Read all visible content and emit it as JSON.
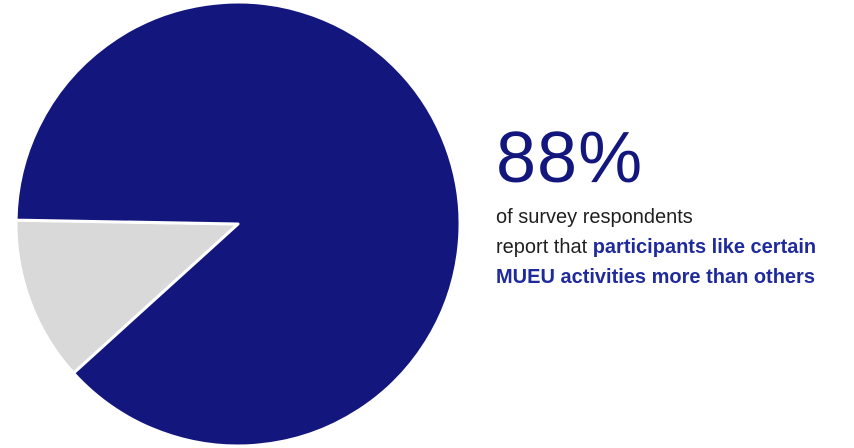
{
  "colors": {
    "primary": "#13177d",
    "secondary": "#d9d9d9",
    "highlight_text": "#1f2a9c",
    "body_text": "#1f1f1f"
  },
  "callout": {
    "percent": "88%",
    "caption_plain_1": "of survey respondents",
    "caption_plain_2": "report that ",
    "caption_bold": "participants like certain MUEU activities more than others"
  },
  "chart_data": {
    "type": "pie",
    "slices": [
      {
        "value": 88,
        "color": "#13177d"
      },
      {
        "value": 12,
        "color": "#d9d9d9"
      }
    ]
  }
}
